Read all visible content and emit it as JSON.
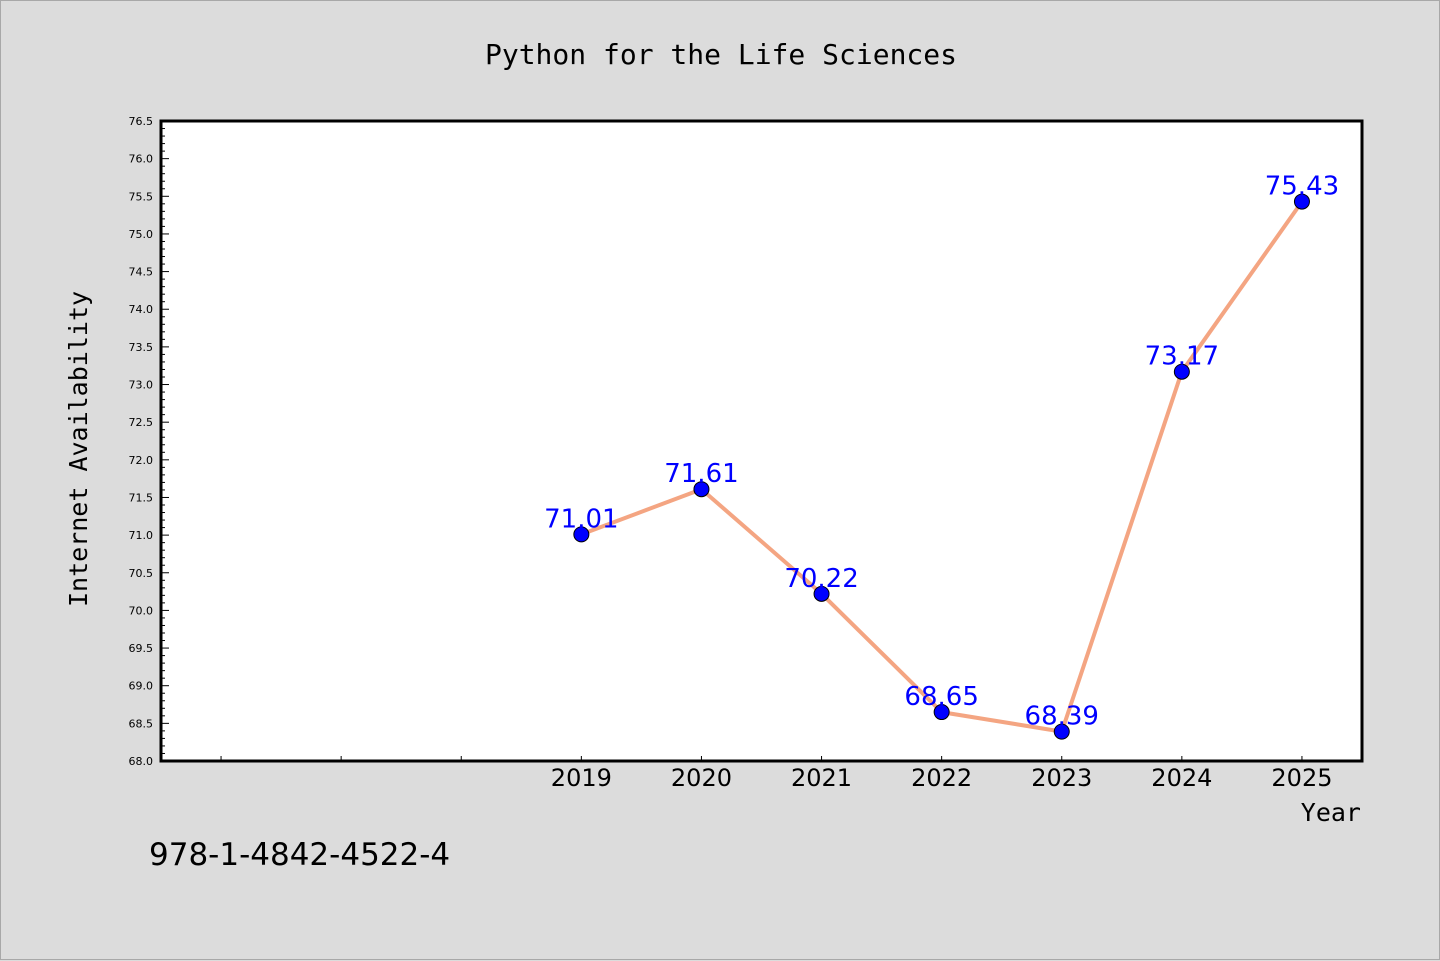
{
  "chart_data": {
    "type": "line",
    "title": "Python for the Life Sciences",
    "xlabel": "Year",
    "ylabel": "Internet Availability",
    "x": [
      2019,
      2020,
      2021,
      2022,
      2023,
      2024,
      2025
    ],
    "series": [
      {
        "values": [
          71.01,
          71.61,
          70.22,
          68.65,
          68.39,
          73.17,
          75.43
        ]
      }
    ],
    "data_labels": [
      "71.01",
      "71.61",
      "70.22",
      "68.65",
      "68.39",
      "73.17",
      "75.43"
    ],
    "xticks": [
      "2019",
      "2020",
      "2021",
      "2022",
      "2023",
      "2024",
      "2025"
    ],
    "xlim": [
      2015.5,
      2025.5
    ],
    "ylim": [
      68.0,
      76.5
    ],
    "yticks": [
      "68.0",
      "68.5",
      "69.0",
      "69.5",
      "70.0",
      "70.5",
      "71.0",
      "71.5",
      "72.0",
      "72.5",
      "73.0",
      "73.5",
      "74.0",
      "74.5",
      "75.0",
      "75.5",
      "76.0",
      "76.5"
    ],
    "line_color": "#f4a582",
    "marker_color": "#0000ff",
    "label_color": "#0000ff",
    "grid": false
  },
  "footer": {
    "isbn": "978-1-4842-4522-4"
  }
}
